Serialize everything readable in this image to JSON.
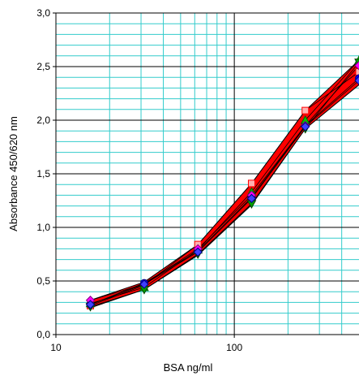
{
  "chart_data": {
    "type": "scatter",
    "xscale": "log",
    "xlim": [
      10,
      500
    ],
    "ylim": [
      0,
      3
    ],
    "grid": true,
    "xlabel": "BSA  ng/ml",
    "ylabel": "Absorbance 450/620 nm",
    "xticks": [
      10,
      100
    ],
    "xtick_labels": [
      "10",
      "100"
    ],
    "yticks": [
      0,
      0.5,
      1.0,
      1.5,
      2.0,
      2.5,
      3.0
    ],
    "ytick_labels": [
      "0,0",
      "0,5",
      "1,0",
      "1,5",
      "2,0",
      "2,5",
      "3,0"
    ],
    "x": [
      15.6,
      31.25,
      62.5,
      125,
      250,
      500
    ],
    "band": {
      "color": "#ff0000",
      "upper": [
        0.32,
        0.49,
        0.84,
        1.41,
        2.09,
        2.56
      ],
      "lower": [
        0.25,
        0.42,
        0.74,
        1.21,
        1.92,
        2.33
      ]
    },
    "series": [
      {
        "marker": "square",
        "color": "#ff0000",
        "fill": "#ffb0b0",
        "values": [
          0.27,
          0.46,
          0.84,
          1.41,
          2.09,
          2.45
        ]
      },
      {
        "marker": "circle",
        "color": "#000080",
        "fill": "#0000ff",
        "values": [
          0.28,
          0.48,
          0.78,
          1.28,
          1.95,
          2.39
        ]
      },
      {
        "marker": "triangle-up",
        "color": "#006400",
        "fill": "#00c000",
        "values": [
          0.29,
          0.44,
          0.79,
          1.33,
          2.0,
          2.56
        ]
      },
      {
        "marker": "triangle-down",
        "color": "#004000",
        "fill": "#00a000",
        "values": [
          0.26,
          0.42,
          0.75,
          1.22,
          1.92,
          2.54
        ]
      },
      {
        "marker": "diamond",
        "color": "#800080",
        "fill": "#ff00ff",
        "values": [
          0.32,
          0.47,
          0.8,
          1.3,
          1.95,
          2.51
        ]
      },
      {
        "marker": "diamond",
        "color": "#000080",
        "fill": "#4040ff",
        "values": [
          0.28,
          0.47,
          0.77,
          1.27,
          1.94,
          2.37
        ]
      }
    ]
  }
}
